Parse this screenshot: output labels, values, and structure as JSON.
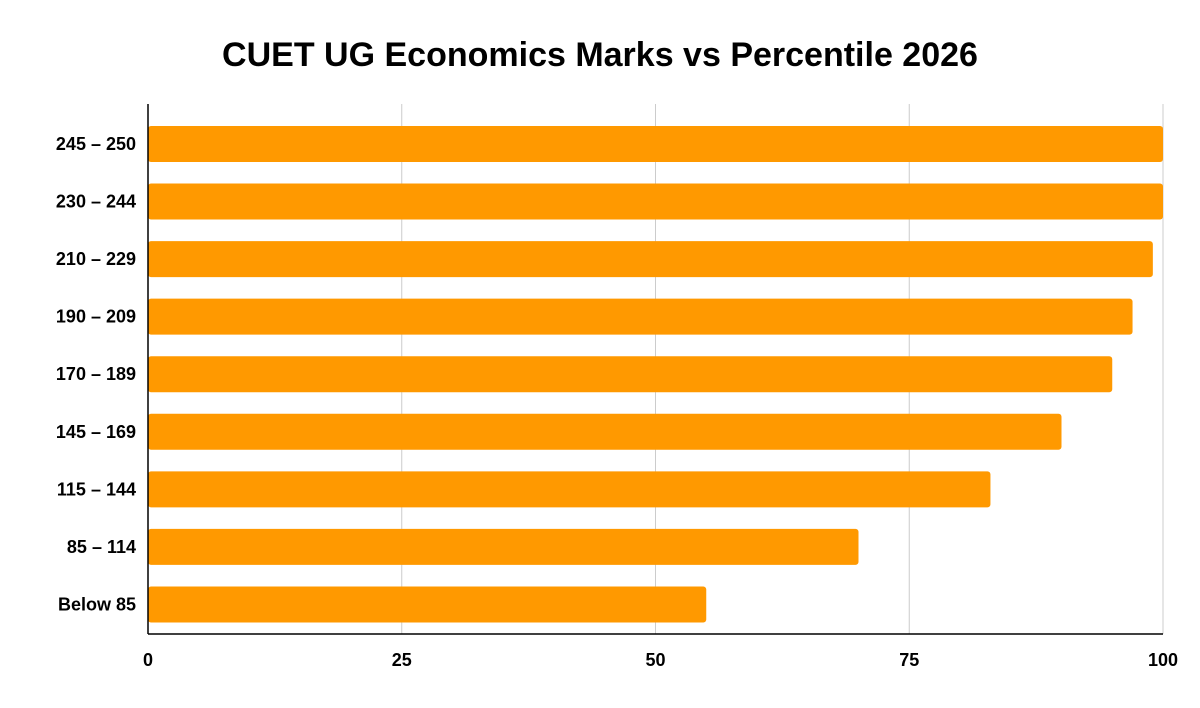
{
  "chart_data": {
    "type": "bar",
    "orientation": "horizontal",
    "title": "CUET UG Economics Marks vs Percentile 2026",
    "xlabel": "",
    "ylabel": "",
    "categories": [
      "245 – 250",
      "230 – 244",
      "210 – 229",
      "190 – 209",
      "170 – 189",
      "145 – 169",
      "115 – 144",
      "85 – 114",
      "Below 85"
    ],
    "values": [
      100,
      100,
      99,
      97,
      95,
      90,
      83,
      70,
      55
    ],
    "xlim": [
      0,
      100
    ],
    "xticks": [
      "0",
      "25",
      "50",
      "75",
      "100"
    ],
    "grid": true,
    "legend": "none",
    "colors": {
      "bar": "#ff9900",
      "grid": "#cccccc",
      "axis": "#000000"
    }
  }
}
